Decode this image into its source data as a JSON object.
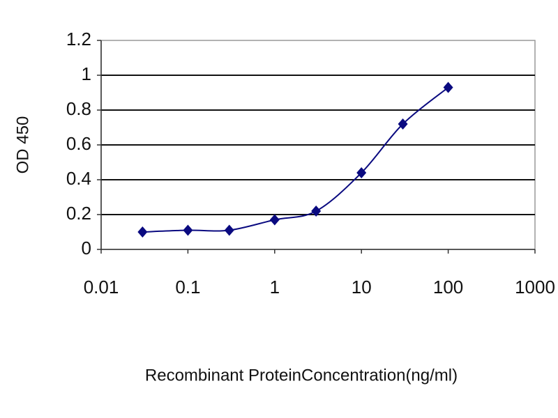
{
  "chart_data": {
    "type": "line",
    "x": [
      0.03,
      0.1,
      0.3,
      1,
      3,
      10,
      30,
      100
    ],
    "values": [
      0.1,
      0.11,
      0.11,
      0.17,
      0.22,
      0.44,
      0.72,
      0.93
    ],
    "color": "#0a0a80",
    "xscale": "log",
    "xlim": [
      0.01,
      1000
    ],
    "xticks": [
      0.01,
      0.1,
      1,
      10,
      100,
      1000
    ],
    "ylim": [
      0,
      1.2
    ],
    "yticks": [
      0,
      0.2,
      0.4,
      0.6,
      0.8,
      1,
      1.2
    ],
    "grid": true,
    "ylabel": "OD 450",
    "xlabel": "Recombinant ProteinConcentration(ng/ml)"
  }
}
